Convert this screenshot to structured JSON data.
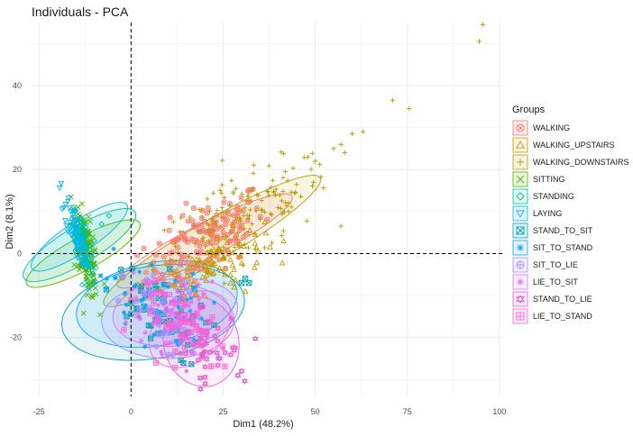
{
  "chart_data": {
    "type": "scatter",
    "title": "Individuals - PCA",
    "xlabel": "Dim1 (48.2%)",
    "ylabel": "Dim2 (8.1%)",
    "xlim": [
      -27,
      101
    ],
    "ylim": [
      -34,
      55
    ],
    "xticks": [
      -25,
      0,
      25,
      50,
      75,
      100
    ],
    "yticks": [
      -20,
      0,
      20,
      40
    ],
    "xtick_labels": [
      "-25",
      "0",
      "25",
      "50",
      "75",
      "100"
    ],
    "ytick_labels": [
      "-20",
      "0",
      "20",
      "40"
    ],
    "grid": true,
    "reference_lines": {
      "x": 0,
      "y": 0,
      "style": "dashed"
    },
    "legend": {
      "title": "Groups",
      "position": "right"
    },
    "series": [
      {
        "name": "WALKING",
        "color": "#F8766D",
        "marker": "circle-cross",
        "center": [
          20,
          3
        ],
        "spread": [
          8,
          4.5
        ],
        "slope": 0.45,
        "count": 160,
        "ellipse": {
          "center": [
            20,
            3
          ],
          "rx": 26,
          "ry": 4.2,
          "angle_deg": 24
        },
        "outliers": []
      },
      {
        "name": "WALKING_UPSTAIRS",
        "color": "#C49A00",
        "marker": "triangle",
        "center": [
          22,
          -2
        ],
        "spread": [
          7,
          3
        ],
        "slope": 0.3,
        "count": 90,
        "ellipse": null,
        "outliers": [
          [
            28,
            -8
          ],
          [
            31,
            -9
          ],
          [
            16,
            -8
          ],
          [
            20,
            -10
          ],
          [
            12,
            -5
          ],
          [
            27,
            -7
          ]
        ]
      },
      {
        "name": "WALKING_DOWNSTAIRS",
        "color": "#B89A00",
        "marker": "plus",
        "center": [
          30,
          8
        ],
        "spread": [
          12,
          5
        ],
        "slope": 0.42,
        "count": 170,
        "ellipse": {
          "center": [
            22,
            3
          ],
          "rx": 33,
          "ry": 5,
          "angle_deg": 27
        },
        "outliers": [
          [
            95.5,
            54.5
          ],
          [
            94.5,
            50.5
          ],
          [
            75.5,
            34.5
          ],
          [
            71,
            36.5
          ],
          [
            63,
            29
          ],
          [
            60,
            28.5
          ],
          [
            57,
            26
          ],
          [
            55,
            25
          ],
          [
            50,
            22
          ],
          [
            48,
            23
          ],
          [
            58,
            24
          ]
        ]
      },
      {
        "name": "SITTING",
        "color": "#53B400",
        "marker": "x",
        "center": [
          -12,
          0
        ],
        "spread": [
          3,
          8
        ],
        "slope": -2.2,
        "count": 140,
        "ellipse": {
          "center": [
            -13,
            0
          ],
          "rx": 4,
          "ry": 17,
          "angle_deg": -65
        },
        "outliers": []
      },
      {
        "name": "STANDING",
        "color": "#00C094",
        "marker": "diamond",
        "center": [
          -13,
          2
        ],
        "spread": [
          3,
          7
        ],
        "slope": -2.0,
        "count": 110,
        "ellipse": {
          "center": [
            -14,
            2
          ],
          "rx": 4.5,
          "ry": 17,
          "angle_deg": -63
        },
        "outliers": [
          [
            -6,
            9
          ],
          [
            -8,
            7
          ],
          [
            -3,
            -5
          ]
        ]
      },
      {
        "name": "LAYING",
        "color": "#00B6EB",
        "marker": "triangle-down",
        "center": [
          -15,
          5
        ],
        "spread": [
          3,
          5
        ],
        "slope": -2.3,
        "count": 70,
        "ellipse": {
          "center": [
            -14,
            4
          ],
          "rx": 3.8,
          "ry": 15,
          "angle_deg": -60
        },
        "outliers": []
      },
      {
        "name": "STAND_TO_SIT",
        "color": "#00A0B0",
        "marker": "square-cross",
        "center": [
          6,
          -14
        ],
        "spread": [
          7,
          5
        ],
        "slope": -0.3,
        "count": 50,
        "ellipse": {
          "center": [
            6,
            -14
          ],
          "rx": 25,
          "ry": 11,
          "angle_deg": 8
        },
        "outliers": [
          [
            32,
            -7
          ],
          [
            31,
            -6
          ],
          [
            30,
            -7
          ]
        ]
      },
      {
        "name": "SIT_TO_STAND",
        "color": "#06A4FF",
        "marker": "asterisk",
        "center": [
          7,
          -12
        ],
        "spread": [
          7,
          5
        ],
        "slope": -0.3,
        "count": 50,
        "ellipse": {
          "center": [
            7,
            -12
          ],
          "rx": 22,
          "ry": 10,
          "angle_deg": 8
        },
        "outliers": []
      },
      {
        "name": "SIT_TO_LIE",
        "color": "#A58AFF",
        "marker": "circle-plus",
        "center": [
          10,
          -16
        ],
        "spread": [
          6,
          5
        ],
        "slope": -0.3,
        "count": 60,
        "ellipse": {
          "center": [
            10,
            -16
          ],
          "rx": 18,
          "ry": 9,
          "angle_deg": 0
        },
        "outliers": []
      },
      {
        "name": "LIE_TO_SIT",
        "color": "#DF70F8",
        "marker": "star",
        "center": [
          12,
          -14
        ],
        "spread": [
          6,
          5
        ],
        "slope": -0.3,
        "count": 60,
        "ellipse": {
          "center": [
            12,
            -14
          ],
          "rx": 17,
          "ry": 8,
          "angle_deg": 5
        },
        "outliers": []
      },
      {
        "name": "STAND_TO_LIE",
        "color": "#E65ECF",
        "marker": "star-of-david",
        "center": [
          18,
          -20
        ],
        "spread": [
          6,
          5
        ],
        "slope": -0.4,
        "count": 60,
        "ellipse": {
          "center": [
            19,
            -21
          ],
          "rx": 10,
          "ry": 11,
          "angle_deg": 35
        },
        "outliers": [
          [
            30,
            -28
          ],
          [
            29,
            -29
          ],
          [
            24,
            -25
          ],
          [
            28,
            -23
          ]
        ]
      },
      {
        "name": "LIE_TO_STAND",
        "color": "#FB61D7",
        "marker": "square-plus",
        "center": [
          15,
          -18
        ],
        "spread": [
          6,
          4
        ],
        "slope": -0.4,
        "count": 50,
        "ellipse": {
          "center": [
            16,
            -18
          ],
          "rx": 12,
          "ry": 8,
          "angle_deg": 30
        },
        "outliers": []
      }
    ]
  }
}
